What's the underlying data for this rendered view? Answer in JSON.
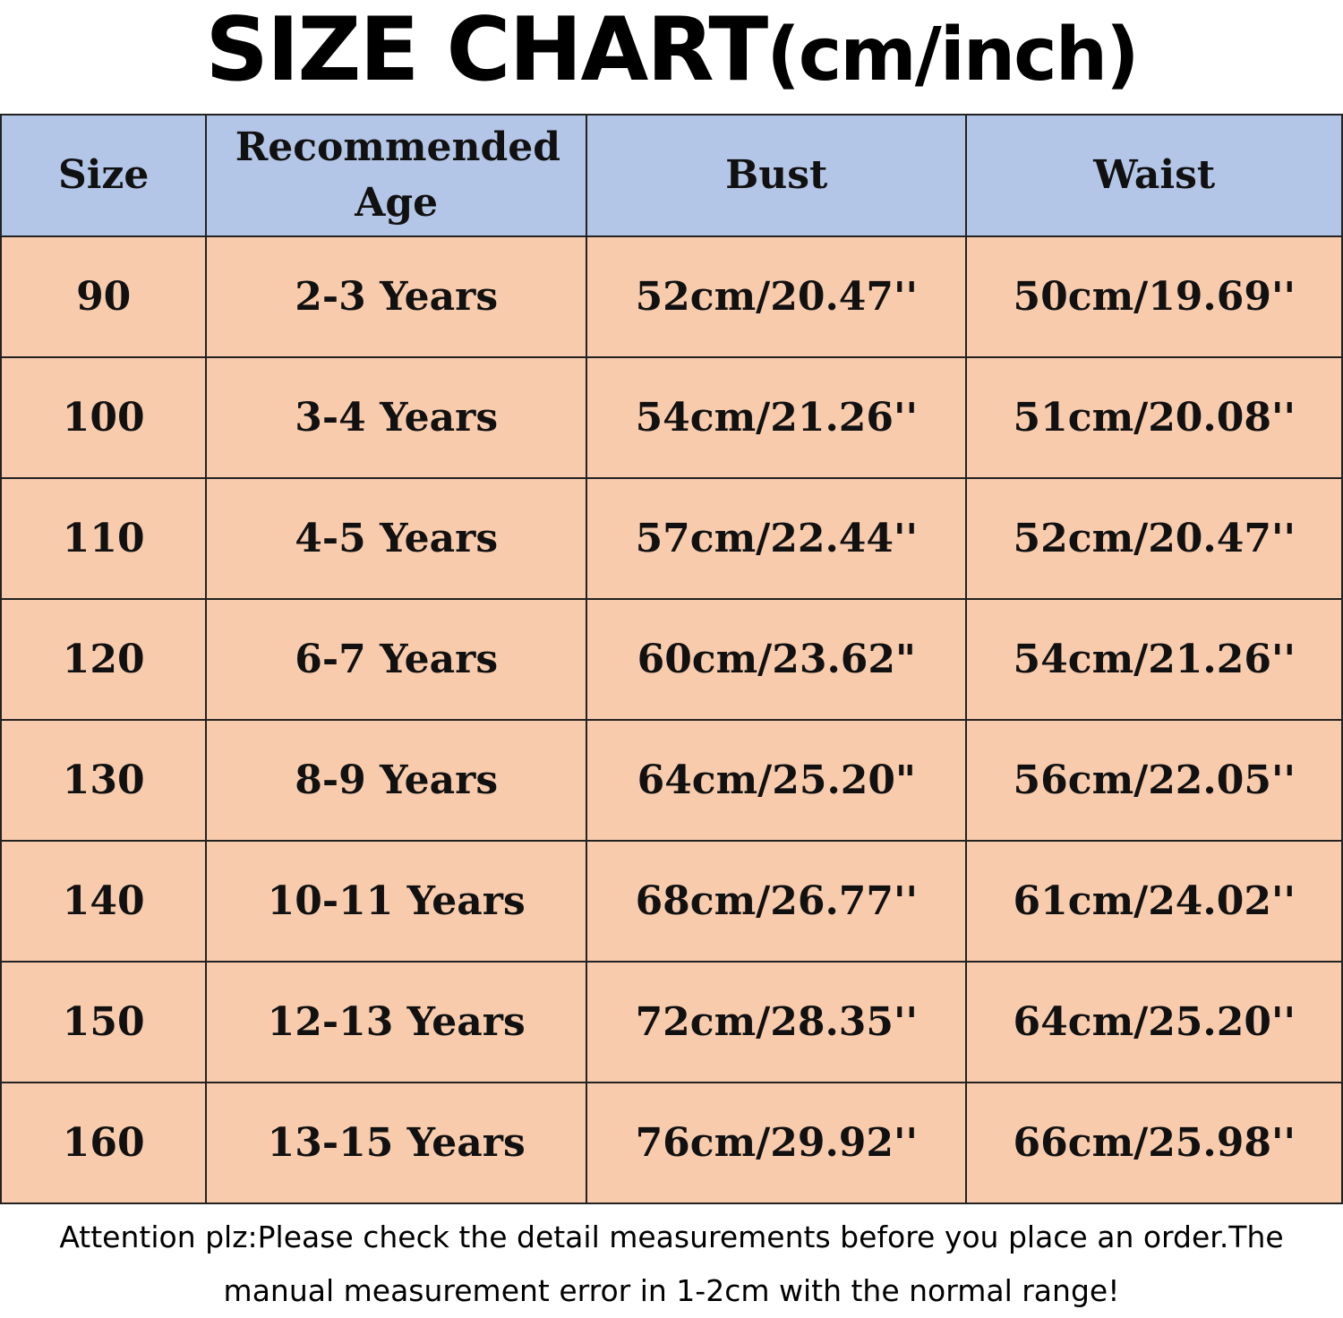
{
  "title": {
    "main": "SIZE CHART",
    "unit": "(cm/inch)"
  },
  "table": {
    "headers": [
      "Size",
      "Recommended Age",
      "Bust",
      "Waist"
    ],
    "rows": [
      [
        "90",
        "2-3 Years",
        "52cm/20.47''",
        "50cm/19.69''"
      ],
      [
        "100",
        "3-4 Years",
        "54cm/21.26''",
        "51cm/20.08''"
      ],
      [
        "110",
        "4-5 Years",
        "57cm/22.44''",
        "52cm/20.47''"
      ],
      [
        "120",
        "6-7 Years",
        "60cm/23.62\"",
        "54cm/21.26''"
      ],
      [
        "130",
        "8-9 Years",
        "64cm/25.20\"",
        "56cm/22.05''"
      ],
      [
        "140",
        "10-11 Years",
        "68cm/26.77''",
        "61cm/24.02''"
      ],
      [
        "150",
        "12-13 Years",
        "72cm/28.35''",
        "64cm/25.20''"
      ],
      [
        "160",
        "13-15 Years",
        "76cm/29.92''",
        "66cm/25.98''"
      ]
    ]
  },
  "note": {
    "line1": "Attention plz:Please check the detail measurements before you place an order.The",
    "line2": "manual measurement error in 1-2cm with the normal range!"
  },
  "colors": {
    "header_bg": "#b4c6e7",
    "row_bg": "#f8cbad"
  }
}
